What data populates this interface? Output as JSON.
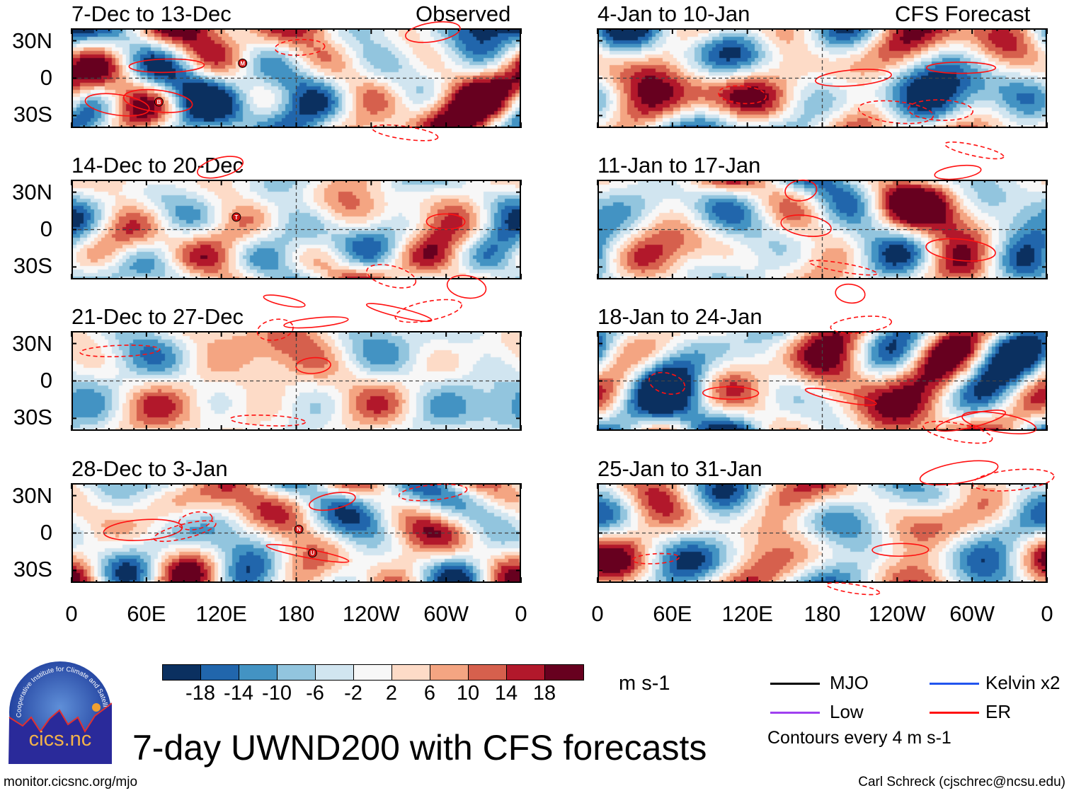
{
  "figure": {
    "title": "7-day UWND200 with CFS forecasts",
    "url": "monitor.cicsnc.org/mjo",
    "credit": "Carl Schreck (cjschrec@ncsu.edu)",
    "logo": {
      "text": "cics.nc",
      "ring_text": "Cooperative Institute for Climate and Satellites"
    }
  },
  "columns": {
    "left_label": "Observed",
    "right_label": "CFS Forecast"
  },
  "panels": [
    {
      "title": "7-Dec to 13-Dec",
      "type": "observed",
      "storms": [
        {
          "letter": "M",
          "lon": 137,
          "lat": 12
        },
        {
          "letter": "B",
          "lon": 70,
          "lat": -19
        }
      ]
    },
    {
      "title": "14-Dec to 20-Dec",
      "type": "observed",
      "storms": [
        {
          "letter": "T",
          "lon": 132,
          "lat": 10
        }
      ]
    },
    {
      "title": "21-Dec to 27-Dec",
      "type": "observed",
      "storms": []
    },
    {
      "title": "28-Dec to 3-Jan",
      "type": "observed",
      "storms": [
        {
          "letter": "N",
          "lon": 182,
          "lat": 3
        },
        {
          "letter": "U",
          "lon": 193,
          "lat": -16
        }
      ]
    },
    {
      "title": "4-Jan to 10-Jan",
      "type": "forecast",
      "storms": []
    },
    {
      "title": "11-Jan to 17-Jan",
      "type": "forecast",
      "storms": []
    },
    {
      "title": "18-Jan to 24-Jan",
      "type": "forecast",
      "storms": []
    },
    {
      "title": "25-Jan to 31-Jan",
      "type": "forecast",
      "storms": []
    }
  ],
  "axes": {
    "lat_labels": [
      "30N",
      "0",
      "30S"
    ],
    "lon_labels": [
      "0",
      "60E",
      "120E",
      "180",
      "120W",
      "60W",
      "0"
    ]
  },
  "colorbar": {
    "unit": "m s-1",
    "labels": [
      "-18",
      "-14",
      "-10",
      "-6",
      "-2",
      "2",
      "6",
      "10",
      "14",
      "18"
    ],
    "colors": [
      "#0b3060",
      "#2166ac",
      "#4393c3",
      "#92c5de",
      "#d1e5f0",
      "#f7f7f7",
      "#fddbc7",
      "#f4a582",
      "#d6604d",
      "#b2182b",
      "#67001f"
    ]
  },
  "legend": {
    "items": [
      {
        "label": "MJO",
        "color": "#000000"
      },
      {
        "label": "Kelvin x2",
        "color": "#2255ee"
      },
      {
        "label": "Low",
        "color": "#a040f0"
      },
      {
        "label": "ER",
        "color": "#ff1010"
      }
    ],
    "note": "Contours every 4 m s-1"
  }
}
